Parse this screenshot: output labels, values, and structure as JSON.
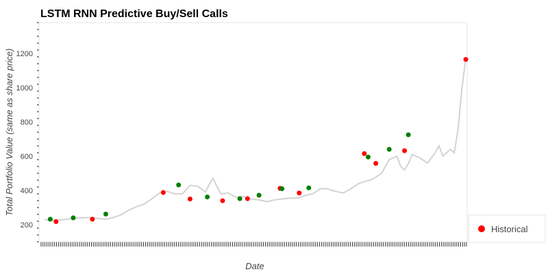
{
  "chart_data": {
    "type": "line",
    "title": "LSTM RNN Predictive Buy/Sell Calls",
    "xlabel": "Date",
    "ylabel": "Total Portfolio Value (same as share price)",
    "ylim": [
      100,
      1380
    ],
    "yticks": [
      200,
      400,
      600,
      800,
      1000,
      1200
    ],
    "x_count": 221,
    "grid": false,
    "legend_position": "right",
    "colors": {
      "line": "#d3d3d3",
      "buy": "#008000",
      "sell": "#ff0000"
    },
    "series": [
      {
        "type": "line",
        "x": [
          0,
          4,
          8,
          12,
          16,
          20,
          24,
          28,
          32,
          36,
          40,
          44,
          48,
          52,
          56,
          60,
          64,
          68,
          72,
          76,
          80,
          84,
          86,
          88,
          92,
          96,
          100,
          104,
          108,
          112,
          116,
          120,
          124,
          128,
          132,
          136,
          140,
          144,
          148,
          150,
          152,
          156,
          160,
          164,
          168,
          170,
          172,
          176,
          180,
          184,
          186,
          188,
          190,
          192,
          196,
          200,
          204,
          206,
          208,
          212,
          214,
          216,
          218,
          220
        ],
        "values": [
          230,
          225,
          228,
          232,
          238,
          240,
          242,
          236,
          232,
          242,
          258,
          285,
          305,
          320,
          350,
          385,
          395,
          380,
          380,
          430,
          425,
          390,
          435,
          470,
          380,
          385,
          360,
          365,
          350,
          345,
          335,
          345,
          350,
          355,
          355,
          370,
          380,
          410,
          410,
          400,
          395,
          385,
          410,
          440,
          455,
          460,
          470,
          500,
          580,
          600,
          540,
          520,
          555,
          610,
          590,
          560,
          620,
          660,
          600,
          640,
          620,
          760,
          1000,
          1170
        ]
      },
      {
        "type": "scatter",
        "name": "Historical",
        "points": [
          {
            "x": 3,
            "y": 232,
            "signal": "buy"
          },
          {
            "x": 6,
            "y": 218,
            "signal": "sell"
          },
          {
            "x": 15,
            "y": 240,
            "signal": "buy"
          },
          {
            "x": 25,
            "y": 232,
            "signal": "sell"
          },
          {
            "x": 32,
            "y": 262,
            "signal": "buy"
          },
          {
            "x": 62,
            "y": 388,
            "signal": "sell"
          },
          {
            "x": 70,
            "y": 432,
            "signal": "buy"
          },
          {
            "x": 76,
            "y": 350,
            "signal": "sell"
          },
          {
            "x": 85,
            "y": 362,
            "signal": "buy"
          },
          {
            "x": 93,
            "y": 340,
            "signal": "sell"
          },
          {
            "x": 102,
            "y": 352,
            "signal": "buy"
          },
          {
            "x": 106,
            "y": 352,
            "signal": "sell"
          },
          {
            "x": 112,
            "y": 372,
            "signal": "buy"
          },
          {
            "x": 123,
            "y": 412,
            "signal": "sell"
          },
          {
            "x": 124,
            "y": 410,
            "signal": "buy"
          },
          {
            "x": 133,
            "y": 385,
            "signal": "sell"
          },
          {
            "x": 138,
            "y": 415,
            "signal": "buy"
          },
          {
            "x": 167,
            "y": 615,
            "signal": "sell"
          },
          {
            "x": 169,
            "y": 595,
            "signal": "buy"
          },
          {
            "x": 173,
            "y": 558,
            "signal": "sell"
          },
          {
            "x": 180,
            "y": 640,
            "signal": "buy"
          },
          {
            "x": 188,
            "y": 632,
            "signal": "sell"
          },
          {
            "x": 190,
            "y": 725,
            "signal": "buy"
          },
          {
            "x": 220,
            "y": 1165,
            "signal": "sell"
          }
        ]
      }
    ],
    "legend": [
      {
        "label": "Historical",
        "color": "#ff0000"
      }
    ]
  }
}
